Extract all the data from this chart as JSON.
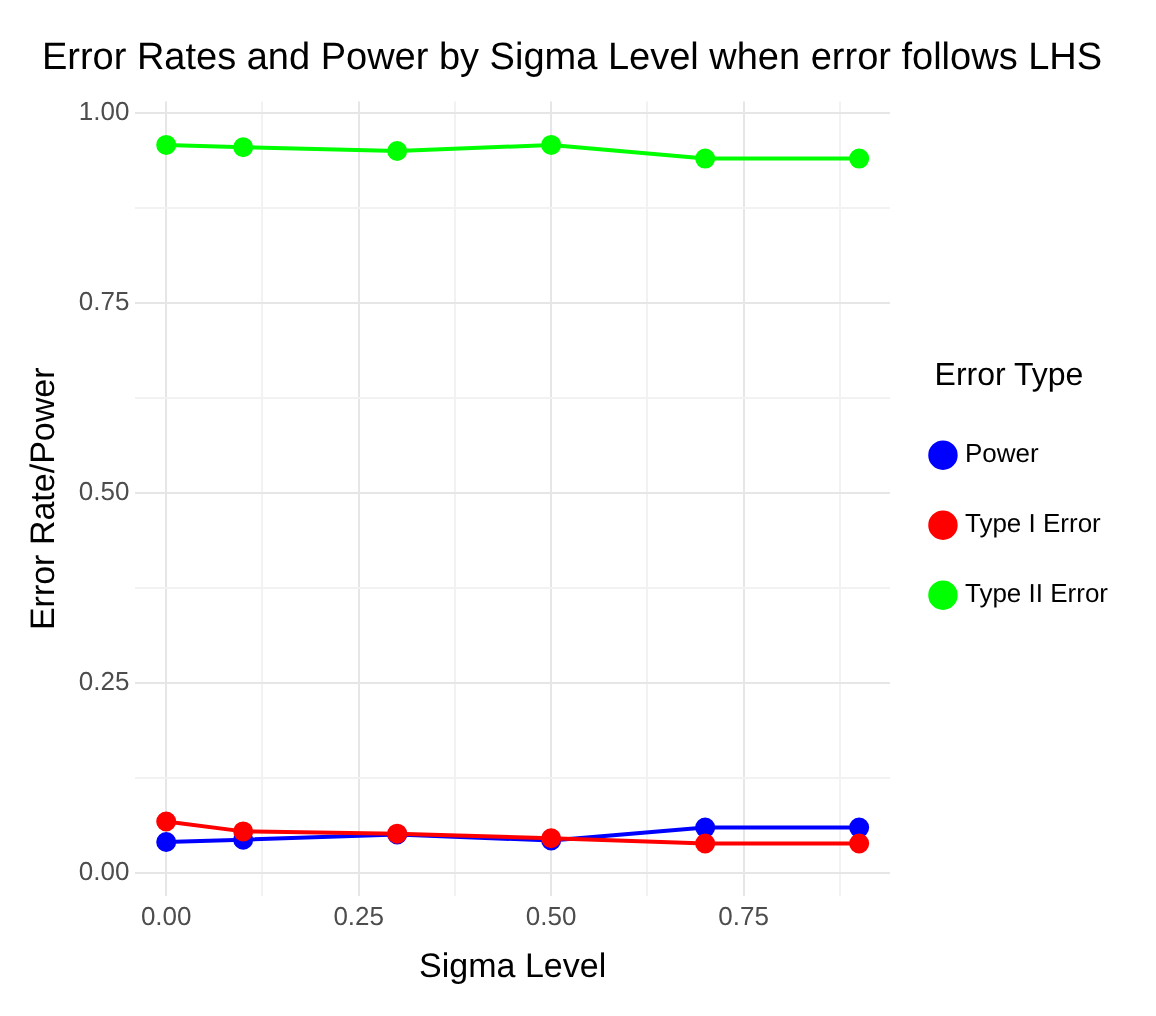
{
  "chart_data": {
    "type": "line",
    "title": "Error Rates and Power by Sigma Level when error follows LHS",
    "xlabel": "Sigma Level",
    "ylabel": "Error Rate/Power",
    "legend_title": "Error Type",
    "legend": "right",
    "grid": true,
    "marker": "circle",
    "line_style": "solid",
    "xlim": [
      -0.04,
      0.94
    ],
    "xticks": [
      {
        "value": 0,
        "label": "0.00"
      },
      {
        "value": 0.125,
        "label": null
      },
      {
        "value": 0.25,
        "label": "0.25"
      },
      {
        "value": 0.375,
        "label": null
      },
      {
        "value": 0.5,
        "label": "0.50"
      },
      {
        "value": 0.625,
        "label": null
      },
      {
        "value": 0.75,
        "label": "0.75"
      },
      {
        "value": 0.875,
        "label": null
      }
    ],
    "ylim": [
      -0.03,
      1.015
    ],
    "yticks": [
      {
        "value": 0,
        "label": "0.00"
      },
      {
        "value": 0.125,
        "label": null
      },
      {
        "value": 0.25,
        "label": "0.25"
      },
      {
        "value": 0.375,
        "label": null
      },
      {
        "value": 0.5,
        "label": "0.50"
      },
      {
        "value": 0.625,
        "label": null
      },
      {
        "value": 0.75,
        "label": "0.75"
      },
      {
        "value": 0.875,
        "label": null
      },
      {
        "value": 1,
        "label": "1.00"
      }
    ],
    "x": [
      0,
      0.1,
      0.3,
      0.5,
      0.7,
      0.9
    ],
    "series": [
      {
        "name": "Power",
        "color": "#0000ff",
        "values": [
          0.041,
          0.044,
          0.051,
          0.043,
          0.06,
          0.06
        ]
      },
      {
        "name": "Type I Error",
        "color": "#ff0000",
        "values": [
          0.068,
          0.055,
          0.052,
          0.046,
          0.039,
          0.039
        ]
      },
      {
        "name": "Type II Error",
        "color": "#00ff00",
        "values": [
          0.958,
          0.955,
          0.95,
          0.958,
          0.94,
          0.94
        ]
      }
    ]
  }
}
